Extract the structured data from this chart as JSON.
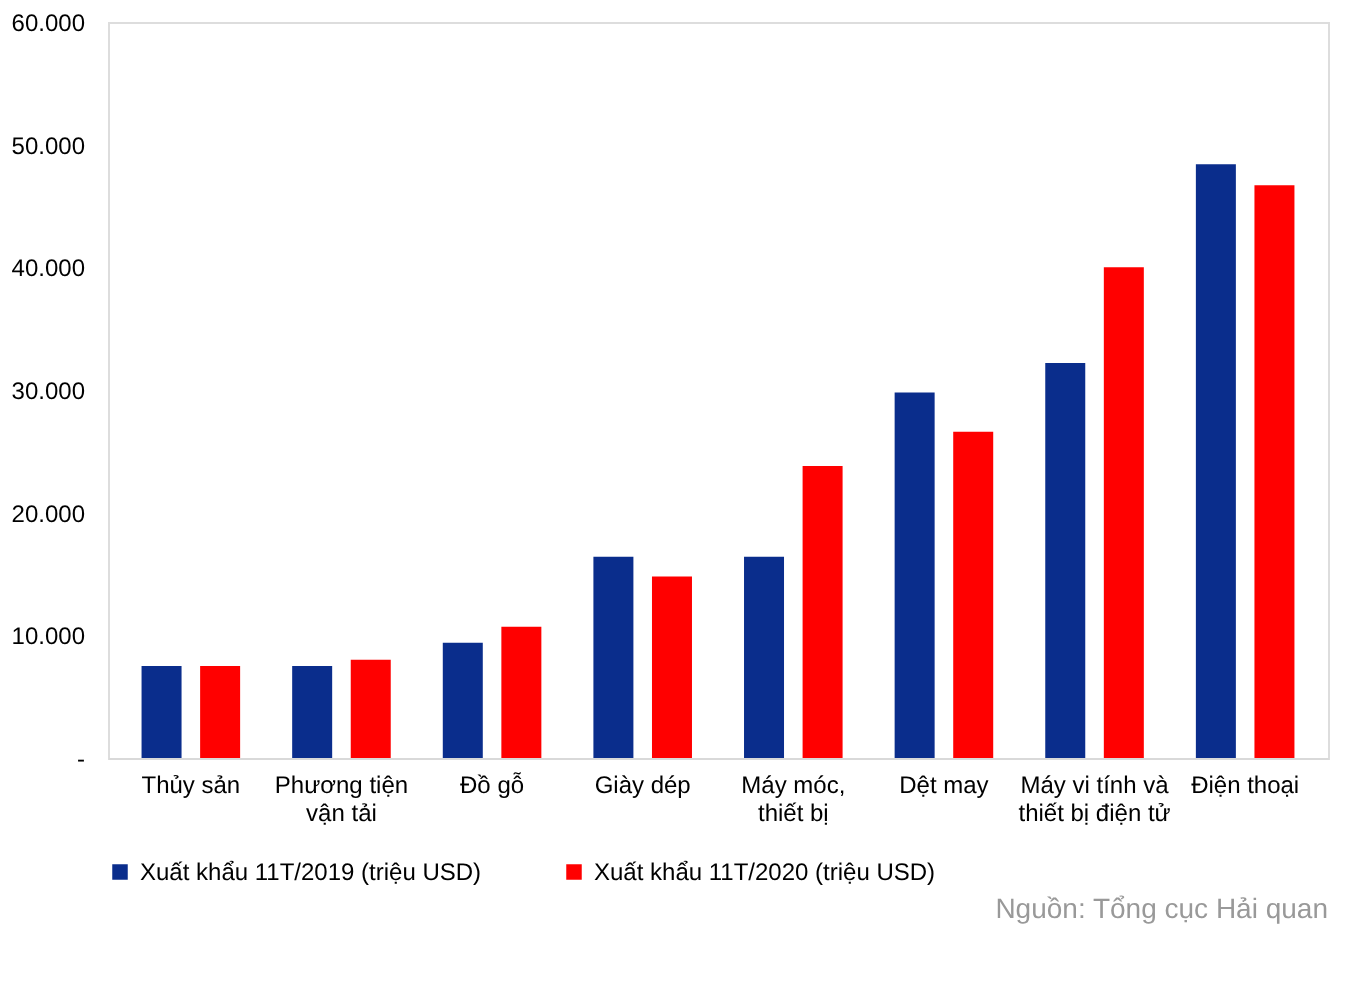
{
  "chart_data": {
    "type": "bar",
    "categories": [
      "Thủy sản",
      "Phương tiện\nvận tải",
      "Đồ gỗ",
      "Giày dép",
      "Máy móc,\nthiết bị",
      "Dệt may",
      "Máy vi tính và\nthiết bị điện tử",
      "Điện thoại"
    ],
    "series": [
      {
        "name": "Xuất khẩu 11T/2019 (triệu USD)",
        "color": "#0a2d8c",
        "values": [
          7500,
          7500,
          9400,
          16400,
          16400,
          29800,
          32200,
          48400
        ]
      },
      {
        "name": "Xuất khẩu 11T/2020 (triệu USD)",
        "color": "#ff0000",
        "values": [
          7500,
          8000,
          10700,
          14800,
          23800,
          26600,
          40000,
          46700
        ]
      }
    ],
    "ylim": [
      0,
      60000
    ],
    "yticks": [
      {
        "value": 0,
        "label": "-"
      },
      {
        "value": 10000,
        "label": "10.000"
      },
      {
        "value": 20000,
        "label": "20.000"
      },
      {
        "value": 30000,
        "label": "30.000"
      },
      {
        "value": 40000,
        "label": "40.000"
      },
      {
        "value": 50000,
        "label": "50.000"
      },
      {
        "value": 60000,
        "label": "60.000"
      }
    ],
    "grid": false,
    "legend": "bottom",
    "annotations": [
      "Nguồn: Tổng cục Hải quan"
    ]
  }
}
